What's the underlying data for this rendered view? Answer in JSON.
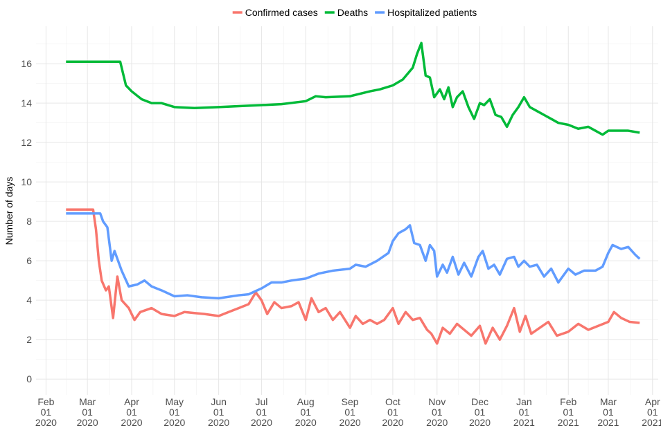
{
  "chart_data": {
    "type": "line",
    "y_label": "Number of days",
    "xlim": [
      "2020-01-25",
      "2021-04-05"
    ],
    "xticks": [
      {
        "value": "2020-02-01",
        "label": "Feb\n01\n2020"
      },
      {
        "value": "2020-03-01",
        "label": "Mar\n01\n2020"
      },
      {
        "value": "2020-04-01",
        "label": "Apr\n01\n2020"
      },
      {
        "value": "2020-05-01",
        "label": "May\n01\n2020"
      },
      {
        "value": "2020-06-01",
        "label": "Jun\n01\n2020"
      },
      {
        "value": "2020-07-01",
        "label": "Jul\n01\n2020"
      },
      {
        "value": "2020-08-01",
        "label": "Aug\n01\n2020"
      },
      {
        "value": "2020-09-01",
        "label": "Sep\n01\n2020"
      },
      {
        "value": "2020-10-01",
        "label": "Oct\n01\n2020"
      },
      {
        "value": "2020-11-01",
        "label": "Nov\n01\n2020"
      },
      {
        "value": "2020-12-01",
        "label": "Dec\n01\n2020"
      },
      {
        "value": "2021-01-01",
        "label": "Jan\n01\n2021"
      },
      {
        "value": "2021-02-01",
        "label": "Feb\n01\n2021"
      },
      {
        "value": "2021-03-01",
        "label": "Mar\n01\n2021"
      },
      {
        "value": "2021-04-01",
        "label": "Apr\n01\n2021"
      }
    ],
    "ylim": [
      -0.8,
      17.9
    ],
    "yticks": [
      0,
      2,
      4,
      6,
      8,
      10,
      12,
      14,
      16
    ],
    "grid": true,
    "legend": "top",
    "series": [
      {
        "name": "Confirmed cases",
        "color": "#F8766D",
        "x": [
          "2020-02-15",
          "2020-03-05",
          "2020-03-07",
          "2020-03-09",
          "2020-03-11",
          "2020-03-14",
          "2020-03-16",
          "2020-03-19",
          "2020-03-22",
          "2020-03-25",
          "2020-03-30",
          "2020-04-03",
          "2020-04-07",
          "2020-04-15",
          "2020-04-22",
          "2020-05-01",
          "2020-05-08",
          "2020-05-15",
          "2020-05-22",
          "2020-06-01",
          "2020-06-08",
          "2020-06-15",
          "2020-06-22",
          "2020-06-27",
          "2020-07-01",
          "2020-07-05",
          "2020-07-10",
          "2020-07-15",
          "2020-07-22",
          "2020-07-27",
          "2020-08-01",
          "2020-08-05",
          "2020-08-10",
          "2020-08-15",
          "2020-08-20",
          "2020-08-25",
          "2020-09-01",
          "2020-09-05",
          "2020-09-10",
          "2020-09-15",
          "2020-09-20",
          "2020-09-25",
          "2020-10-01",
          "2020-10-05",
          "2020-10-10",
          "2020-10-15",
          "2020-10-20",
          "2020-10-25",
          "2020-10-28",
          "2020-11-01",
          "2020-11-05",
          "2020-11-10",
          "2020-11-15",
          "2020-11-20",
          "2020-11-25",
          "2020-12-01",
          "2020-12-05",
          "2020-12-10",
          "2020-12-15",
          "2020-12-20",
          "2020-12-25",
          "2020-12-29",
          "2021-01-02",
          "2021-01-06",
          "2021-01-12",
          "2021-01-18",
          "2021-01-24",
          "2021-02-01",
          "2021-02-08",
          "2021-02-15",
          "2021-02-22",
          "2021-03-01",
          "2021-03-05",
          "2021-03-10",
          "2021-03-16",
          "2021-03-23"
        ],
        "values": [
          8.6,
          8.6,
          7.6,
          6.0,
          5.0,
          4.5,
          4.7,
          3.1,
          5.2,
          4.0,
          3.6,
          3.0,
          3.4,
          3.6,
          3.3,
          3.2,
          3.4,
          3.35,
          3.3,
          3.2,
          3.4,
          3.6,
          3.8,
          4.4,
          4.0,
          3.3,
          3.9,
          3.6,
          3.7,
          3.9,
          3.0,
          4.1,
          3.4,
          3.6,
          3.0,
          3.4,
          2.6,
          3.2,
          2.8,
          3.0,
          2.8,
          3.0,
          3.6,
          2.8,
          3.4,
          3.0,
          3.1,
          2.5,
          2.3,
          1.8,
          2.6,
          2.3,
          2.8,
          2.5,
          2.2,
          2.7,
          1.8,
          2.6,
          2.0,
          2.7,
          3.6,
          2.4,
          3.2,
          2.3,
          2.6,
          2.9,
          2.2,
          2.4,
          2.8,
          2.5,
          2.7,
          2.9,
          3.4,
          3.1,
          2.9,
          2.85
        ]
      },
      {
        "name": "Deaths",
        "color": "#00BA38",
        "x": [
          "2020-02-15",
          "2020-03-24",
          "2020-03-28",
          "2020-04-01",
          "2020-04-08",
          "2020-04-15",
          "2020-04-22",
          "2020-05-01",
          "2020-05-15",
          "2020-06-01",
          "2020-06-15",
          "2020-07-01",
          "2020-07-15",
          "2020-08-01",
          "2020-08-08",
          "2020-08-15",
          "2020-09-01",
          "2020-09-15",
          "2020-09-22",
          "2020-10-01",
          "2020-10-08",
          "2020-10-15",
          "2020-10-18",
          "2020-10-21",
          "2020-10-24",
          "2020-10-27",
          "2020-10-30",
          "2020-11-03",
          "2020-11-06",
          "2020-11-09",
          "2020-11-12",
          "2020-11-15",
          "2020-11-19",
          "2020-11-23",
          "2020-11-27",
          "2020-12-01",
          "2020-12-04",
          "2020-12-08",
          "2020-12-12",
          "2020-12-16",
          "2020-12-20",
          "2020-12-24",
          "2020-12-28",
          "2021-01-01",
          "2021-01-05",
          "2021-01-10",
          "2021-01-15",
          "2021-01-20",
          "2021-01-25",
          "2021-02-01",
          "2021-02-08",
          "2021-02-15",
          "2021-02-20",
          "2021-02-25",
          "2021-03-01",
          "2021-03-08",
          "2021-03-15",
          "2021-03-23"
        ],
        "values": [
          16.1,
          16.1,
          14.9,
          14.6,
          14.2,
          14.0,
          14.0,
          13.8,
          13.75,
          13.8,
          13.85,
          13.9,
          13.95,
          14.1,
          14.35,
          14.3,
          14.35,
          14.6,
          14.7,
          14.9,
          15.2,
          15.8,
          16.5,
          17.05,
          15.4,
          15.3,
          14.3,
          14.7,
          14.2,
          14.8,
          13.8,
          14.3,
          14.6,
          13.8,
          13.2,
          14.0,
          13.9,
          14.2,
          13.4,
          13.3,
          12.8,
          13.4,
          13.8,
          14.3,
          13.8,
          13.6,
          13.4,
          13.2,
          13.0,
          12.9,
          12.7,
          12.8,
          12.6,
          12.4,
          12.6,
          12.6,
          12.6,
          12.5
        ]
      },
      {
        "name": "Hospitalized patients",
        "color": "#619CFF",
        "x": [
          "2020-02-15",
          "2020-03-10",
          "2020-03-12",
          "2020-03-15",
          "2020-03-18",
          "2020-03-20",
          "2020-03-25",
          "2020-03-30",
          "2020-04-05",
          "2020-04-10",
          "2020-04-15",
          "2020-04-22",
          "2020-05-01",
          "2020-05-10",
          "2020-05-20",
          "2020-06-01",
          "2020-06-15",
          "2020-06-22",
          "2020-07-01",
          "2020-07-08",
          "2020-07-15",
          "2020-07-22",
          "2020-08-01",
          "2020-08-10",
          "2020-08-20",
          "2020-09-01",
          "2020-09-05",
          "2020-09-12",
          "2020-09-20",
          "2020-09-28",
          "2020-10-01",
          "2020-10-05",
          "2020-10-10",
          "2020-10-13",
          "2020-10-16",
          "2020-10-20",
          "2020-10-24",
          "2020-10-27",
          "2020-10-30",
          "2020-11-01",
          "2020-11-05",
          "2020-11-08",
          "2020-11-12",
          "2020-11-16",
          "2020-11-20",
          "2020-11-25",
          "2020-11-30",
          "2020-12-03",
          "2020-12-07",
          "2020-12-11",
          "2020-12-15",
          "2020-12-20",
          "2020-12-25",
          "2020-12-28",
          "2021-01-01",
          "2021-01-05",
          "2021-01-10",
          "2021-01-15",
          "2021-01-20",
          "2021-01-25",
          "2021-02-01",
          "2021-02-06",
          "2021-02-12",
          "2021-02-20",
          "2021-02-25",
          "2021-03-01",
          "2021-03-04",
          "2021-03-10",
          "2021-03-15",
          "2021-03-20",
          "2021-03-23"
        ],
        "values": [
          8.4,
          8.4,
          8.0,
          7.7,
          6.0,
          6.5,
          5.5,
          4.7,
          4.8,
          5.0,
          4.7,
          4.5,
          4.2,
          4.25,
          4.15,
          4.1,
          4.25,
          4.3,
          4.6,
          4.9,
          4.9,
          5.0,
          5.1,
          5.35,
          5.5,
          5.6,
          5.8,
          5.7,
          6.0,
          6.4,
          7.0,
          7.4,
          7.6,
          7.8,
          6.9,
          6.8,
          6.0,
          6.8,
          6.5,
          5.2,
          5.8,
          5.4,
          6.2,
          5.3,
          5.9,
          5.2,
          6.2,
          6.5,
          5.6,
          5.8,
          5.3,
          6.1,
          6.2,
          5.7,
          6.0,
          5.7,
          5.8,
          5.2,
          5.6,
          4.9,
          5.6,
          5.3,
          5.5,
          5.5,
          5.7,
          6.4,
          6.8,
          6.6,
          6.7,
          6.3,
          6.1
        ]
      }
    ]
  }
}
